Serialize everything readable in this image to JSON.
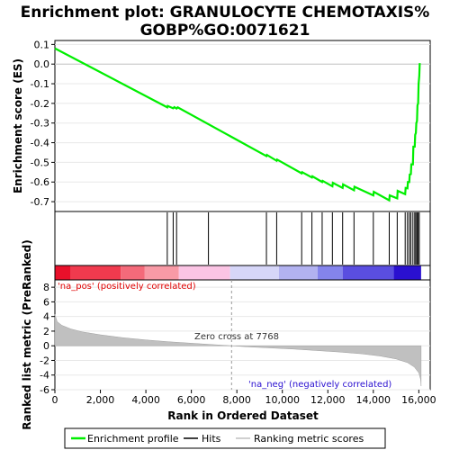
{
  "chart_data": {
    "type": "line",
    "title": "Enrichment plot: GRANULOCYTE CHEMOTAXIS%\nGOBP%GO:0071621",
    "xlabel": "Rank in Ordered Dataset",
    "xlim": [
      0,
      16500
    ],
    "x_ticks": [
      "0",
      "2,000",
      "4,000",
      "6,000",
      "8,000",
      "10,000",
      "12,000",
      "14,000",
      "16,000"
    ],
    "x_tick_values": [
      0,
      2000,
      4000,
      6000,
      8000,
      10000,
      12000,
      14000,
      16000
    ],
    "es_panel": {
      "ylabel": "Enrichment score (ES)",
      "ylim": [
        -0.75,
        0.12
      ],
      "y_ticks": [
        "0.1",
        "0.0",
        "-0.1",
        "-0.2",
        "-0.3",
        "-0.4",
        "-0.5",
        "-0.6",
        "-0.7"
      ],
      "y_tick_values": [
        0.1,
        0.0,
        -0.1,
        -0.2,
        -0.3,
        -0.4,
        -0.5,
        -0.6,
        -0.7
      ],
      "series": [
        {
          "name": "Enrichment profile",
          "color": "#00ee00",
          "x": [
            0,
            4940,
            4960,
            5200,
            5250,
            5350,
            5400,
            9300,
            9320,
            9750,
            9770,
            10850,
            10870,
            11300,
            11320,
            11750,
            11770,
            12200,
            12220,
            12650,
            12670,
            13150,
            13170,
            14000,
            14020,
            14700,
            14720,
            15050,
            15070,
            15400,
            15420,
            15500,
            15520,
            15580,
            15600,
            15650,
            15670,
            15740,
            15760,
            15820,
            15840,
            15870,
            15890,
            15920,
            15940,
            15970,
            15990,
            16020,
            16040
          ],
          "y": [
            0.08,
            -0.22,
            -0.213,
            -0.225,
            -0.219,
            -0.226,
            -0.22,
            -0.468,
            -0.462,
            -0.492,
            -0.486,
            -0.556,
            -0.55,
            -0.577,
            -0.571,
            -0.6,
            -0.594,
            -0.622,
            -0.604,
            -0.63,
            -0.612,
            -0.642,
            -0.624,
            -0.668,
            -0.65,
            -0.693,
            -0.668,
            -0.683,
            -0.645,
            -0.662,
            -0.63,
            -0.632,
            -0.6,
            -0.6,
            -0.562,
            -0.56,
            -0.51,
            -0.51,
            -0.42,
            -0.42,
            -0.36,
            -0.35,
            -0.3,
            -0.29,
            -0.21,
            -0.2,
            -0.1,
            -0.06,
            0.005
          ]
        }
      ]
    },
    "hits_panel": {
      "hit_positions": [
        4940,
        5200,
        5350,
        6750,
        9300,
        9750,
        10850,
        11300,
        11750,
        12200,
        12650,
        13150,
        14000,
        14700,
        15050,
        15400,
        15500,
        15580,
        15650,
        15740,
        15820,
        15870,
        15920,
        15970,
        16020
      ],
      "color_bar": [
        {
          "from": 0,
          "to": 700,
          "color": "#e8102a"
        },
        {
          "from": 700,
          "to": 2900,
          "color": "#f03a4e"
        },
        {
          "from": 2900,
          "to": 3950,
          "color": "#f46a7a"
        },
        {
          "from": 3950,
          "to": 5450,
          "color": "#f89aa6"
        },
        {
          "from": 5450,
          "to": 7700,
          "color": "#fbc4e4"
        },
        {
          "from": 7700,
          "to": 9850,
          "color": "#d6d6f8"
        },
        {
          "from": 9850,
          "to": 11550,
          "color": "#b2b2f0"
        },
        {
          "from": 11550,
          "to": 12650,
          "color": "#8484ec"
        },
        {
          "from": 12650,
          "to": 14900,
          "color": "#5a4ee0"
        },
        {
          "from": 14900,
          "to": 16100,
          "color": "#2a10d0"
        }
      ]
    },
    "metric_panel": {
      "ylabel": "Ranked list metric (PreRanked)",
      "ylim": [
        -6,
        9
      ],
      "y_ticks": [
        "8",
        "6",
        "4",
        "2",
        "0",
        "-2",
        "-4",
        "-6"
      ],
      "y_tick_values": [
        8,
        6,
        4,
        2,
        0,
        -2,
        -4,
        -6
      ],
      "fill_color": "#c0c0c0",
      "x": [
        0,
        100,
        300,
        700,
        1200,
        2000,
        3000,
        4000,
        5000,
        6000,
        7000,
        7768,
        8500,
        9500,
        10500,
        11500,
        12500,
        13500,
        14300,
        15000,
        15500,
        15800,
        16000,
        16080,
        16100
      ],
      "y": [
        4.3,
        3.3,
        2.8,
        2.3,
        1.9,
        1.5,
        1.1,
        0.8,
        0.55,
        0.35,
        0.15,
        0.0,
        -0.15,
        -0.3,
        -0.45,
        -0.65,
        -0.85,
        -1.1,
        -1.4,
        -1.8,
        -2.3,
        -2.9,
        -3.7,
        -4.6,
        -5.5
      ]
    },
    "annotations": {
      "pos_label": "'na_pos' (positively correlated)",
      "neg_label": "'na_neg' (negatively correlated)",
      "zero_cross_label": "Zero cross at 7768",
      "zero_cross_x": 7768
    },
    "legend": {
      "placement": "bottom",
      "items": [
        {
          "label": "Enrichment profile",
          "color": "#00ee00"
        },
        {
          "label": "Hits",
          "color": "#000000"
        },
        {
          "label": "Ranking metric scores",
          "color": "#c0c0c0"
        }
      ]
    }
  }
}
